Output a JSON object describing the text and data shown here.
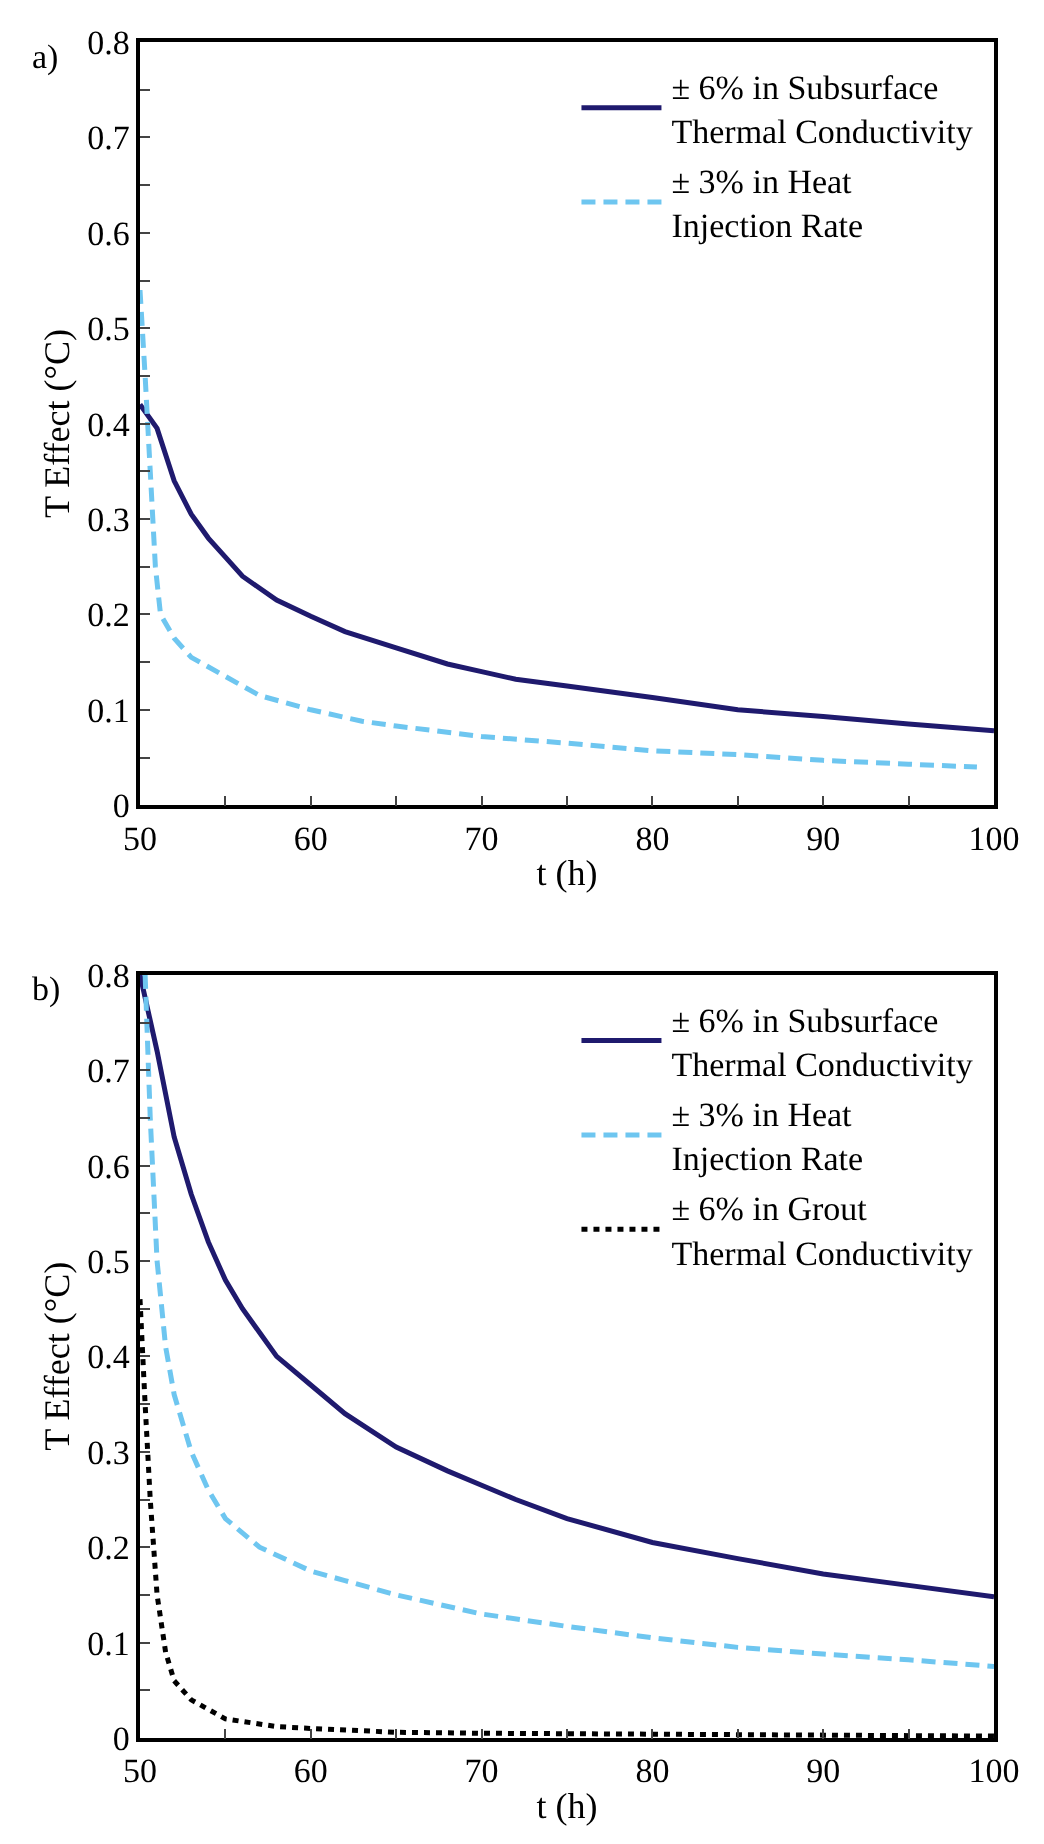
{
  "chart_data": [
    {
      "type": "line",
      "title": "a)",
      "xlabel": "t (h)",
      "ylabel": "T Effect (°C)",
      "xlim": [
        50,
        100
      ],
      "ylim": [
        0,
        0.8
      ],
      "xticks": [
        50,
        {
          "value": 55,
          "label": null
        },
        60,
        {
          "value": 65,
          "label": null
        },
        70,
        {
          "value": 75,
          "label": null
        },
        80,
        {
          "value": 85,
          "label": null
        },
        90,
        {
          "value": 95,
          "label": null
        },
        100
      ],
      "yticks": [
        0,
        {
          "value": 0.05,
          "label": null
        },
        0.1,
        {
          "value": 0.15,
          "label": null
        },
        0.2,
        {
          "value": 0.25,
          "label": null
        },
        0.3,
        {
          "value": 0.35,
          "label": null
        },
        0.4,
        {
          "value": 0.45,
          "label": null
        },
        0.5,
        {
          "value": 0.55,
          "label": null
        },
        0.6,
        {
          "value": 0.65,
          "label": null
        },
        0.7,
        {
          "value": 0.75,
          "label": null
        },
        0.8
      ],
      "legend": "top right",
      "series": [
        {
          "name": "± 6% in Subsurface\nThermal Conductivity",
          "color": "#1f1a6e",
          "line_style": "solid",
          "x": [
            50,
            51,
            52,
            53,
            54,
            55,
            56,
            58,
            60,
            62,
            65,
            68,
            70,
            72,
            75,
            80,
            85,
            90,
            95,
            100
          ],
          "values": [
            0.42,
            0.395,
            0.34,
            0.305,
            0.28,
            0.26,
            0.24,
            0.215,
            0.198,
            0.182,
            0.165,
            0.148,
            0.14,
            0.132,
            0.125,
            0.113,
            0.1,
            0.093,
            0.085,
            0.078
          ]
        },
        {
          "name": "± 3% in Heat\nInjection Rate",
          "color": "#6ec6f0",
          "line_style": "dashed",
          "x": [
            50,
            50.3,
            50.6,
            50.9,
            51.2,
            52,
            53,
            55,
            57,
            60,
            63,
            65,
            70,
            75,
            80,
            85,
            90,
            95,
            99
          ],
          "values": [
            0.54,
            0.45,
            0.35,
            0.25,
            0.2,
            0.175,
            0.155,
            0.135,
            0.115,
            0.1,
            0.088,
            0.083,
            0.072,
            0.065,
            0.057,
            0.053,
            0.047,
            0.043,
            0.04
          ]
        }
      ]
    },
    {
      "type": "line",
      "title": "b)",
      "xlabel": "t (h)",
      "ylabel": "T Effect (°C)",
      "xlim": [
        50,
        100
      ],
      "ylim": [
        0,
        0.8
      ],
      "xticks": [
        50,
        {
          "value": 55,
          "label": null
        },
        60,
        {
          "value": 65,
          "label": null
        },
        70,
        {
          "value": 75,
          "label": null
        },
        80,
        {
          "value": 85,
          "label": null
        },
        90,
        {
          "value": 95,
          "label": null
        },
        100
      ],
      "yticks": [
        0,
        {
          "value": 0.05,
          "label": null
        },
        0.1,
        {
          "value": 0.15,
          "label": null
        },
        0.2,
        {
          "value": 0.25,
          "label": null
        },
        0.3,
        {
          "value": 0.35,
          "label": null
        },
        0.4,
        {
          "value": 0.45,
          "label": null
        },
        0.5,
        {
          "value": 0.55,
          "label": null
        },
        0.6,
        {
          "value": 0.65,
          "label": null
        },
        0.7,
        {
          "value": 0.75,
          "label": null
        },
        0.8
      ],
      "legend": "top right",
      "series": [
        {
          "name": "± 6% in Subsurface\nThermal Conductivity",
          "color": "#1f1a6e",
          "line_style": "solid",
          "x": [
            50,
            51,
            52,
            53,
            54,
            55,
            56,
            57,
            58,
            60,
            62,
            65,
            68,
            70,
            72,
            75,
            80,
            85,
            90,
            95,
            100
          ],
          "values": [
            0.8,
            0.72,
            0.63,
            0.57,
            0.52,
            0.48,
            0.45,
            0.425,
            0.4,
            0.37,
            0.34,
            0.305,
            0.28,
            0.265,
            0.25,
            0.23,
            0.205,
            0.188,
            0.172,
            0.16,
            0.148
          ]
        },
        {
          "name": "± 3% in Heat\nInjection Rate",
          "color": "#6ec6f0",
          "line_style": "dashed",
          "x": [
            50.3,
            50.6,
            51,
            51.5,
            52,
            53,
            54,
            55,
            57,
            60,
            62,
            65,
            70,
            75,
            80,
            85,
            90,
            95,
            100
          ],
          "values": [
            0.8,
            0.65,
            0.5,
            0.41,
            0.36,
            0.3,
            0.26,
            0.23,
            0.2,
            0.175,
            0.165,
            0.15,
            0.13,
            0.117,
            0.105,
            0.095,
            0.088,
            0.082,
            0.075
          ]
        },
        {
          "name": "± 6% in Grout\nThermal Conductivity",
          "color": "#000000",
          "line_style": "dotted",
          "x": [
            50,
            50.3,
            50.6,
            51,
            51.5,
            52,
            53,
            55,
            58,
            60,
            65,
            70,
            80,
            90,
            100
          ],
          "values": [
            0.46,
            0.35,
            0.25,
            0.15,
            0.09,
            0.06,
            0.04,
            0.02,
            0.012,
            0.01,
            0.006,
            0.005,
            0.004,
            0.003,
            0.002
          ]
        }
      ]
    }
  ]
}
